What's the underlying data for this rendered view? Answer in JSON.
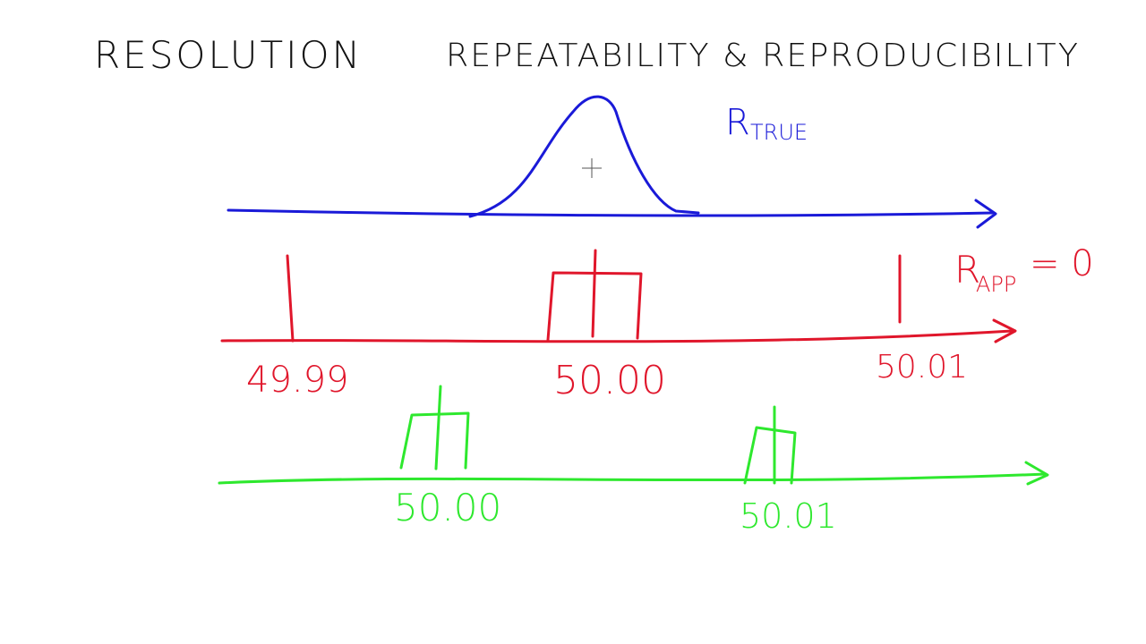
{
  "titles": {
    "left": "RESOLUTION",
    "right": "REPEATABILITY & REPRODUCIBILITY"
  },
  "blue_axis": {
    "label": "R",
    "label_subscript": "TRUE"
  },
  "red_axis": {
    "label": "R",
    "label_subscript": "APP",
    "label_rest": "= 0",
    "tick_labels": [
      "49.99",
      "50.00",
      "50.01"
    ]
  },
  "green_axis": {
    "tick_labels": [
      "50.00",
      "50.01"
    ]
  }
}
